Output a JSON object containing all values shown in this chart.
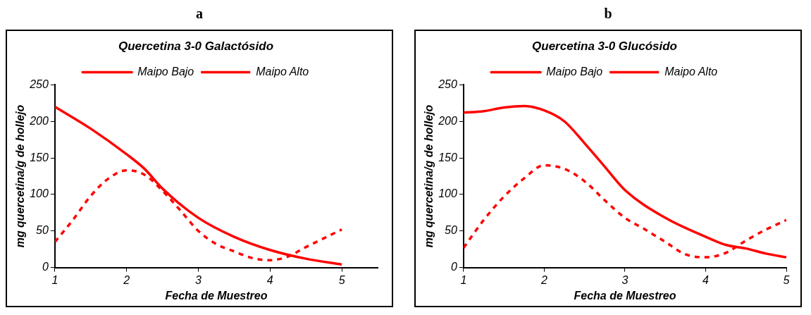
{
  "chart_data": [
    {
      "type": "line",
      "title": "Quercetina 3-0 Galactósido",
      "annotations": [
        "a"
      ],
      "xlabel": "Fecha de Muestreo",
      "ylabel": "mg quercetina/g de hollejo",
      "xlim": [
        1,
        5.5
      ],
      "xticks": [
        1,
        2,
        3,
        4,
        5
      ],
      "ylim": [
        0,
        250
      ],
      "yticks": [
        0,
        50,
        100,
        150,
        200,
        250
      ],
      "grid": false,
      "legend": "top",
      "marker": "none",
      "series": [
        {
          "name": "Maipo Bajo",
          "color": "#ff0000",
          "line_style": "solid",
          "x": [
            1,
            1.5,
            2,
            2.25,
            2.5,
            3,
            3.5,
            4,
            4.5,
            5
          ],
          "values": [
            220,
            190,
            155,
            135,
            108,
            68,
            42,
            24,
            12,
            4
          ]
        },
        {
          "name": "Maipo Alto",
          "color": "#ff0000",
          "line_style": "dashed",
          "x": [
            1,
            1.25,
            1.5,
            1.75,
            2,
            2.25,
            2.5,
            2.75,
            3,
            3.25,
            3.5,
            3.75,
            4,
            4.25,
            4.5,
            4.75,
            5
          ],
          "values": [
            35,
            65,
            98,
            122,
            133,
            127,
            105,
            78,
            50,
            32,
            22,
            13,
            10,
            15,
            28,
            40,
            52
          ]
        }
      ]
    },
    {
      "type": "line",
      "title": "Quercetina 3-0 Glucósido",
      "annotations": [
        "b"
      ],
      "xlabel": "Fecha de Muestreo",
      "ylabel": "mg quercetina/g de hollejo",
      "xlim": [
        1,
        5
      ],
      "xticks": [
        1,
        2,
        3,
        4,
        5
      ],
      "ylim": [
        0,
        250
      ],
      "yticks": [
        0,
        50,
        100,
        150,
        200,
        250
      ],
      "grid": false,
      "legend": "top",
      "marker": "none",
      "series": [
        {
          "name": "Maipo Bajo",
          "color": "#ff0000",
          "line_style": "solid",
          "x": [
            1,
            1.25,
            1.5,
            1.75,
            2,
            2.25,
            2.5,
            2.75,
            3,
            3.5,
            4,
            4.25,
            4.5,
            4.75,
            5
          ],
          "values": [
            212,
            214,
            219,
            221,
            215,
            200,
            170,
            138,
            106,
            68,
            42,
            31,
            26,
            19,
            14
          ]
        },
        {
          "name": "Maipo Alto",
          "color": "#ff0000",
          "line_style": "dashed",
          "x": [
            1,
            1.25,
            1.5,
            1.75,
            2,
            2.25,
            2.5,
            2.75,
            3,
            3.25,
            3.5,
            3.75,
            4,
            4.25,
            4.5,
            4.75,
            5
          ],
          "values": [
            27,
            65,
            97,
            122,
            140,
            135,
            118,
            92,
            68,
            52,
            35,
            18,
            14,
            20,
            37,
            52,
            65
          ]
        }
      ]
    }
  ]
}
